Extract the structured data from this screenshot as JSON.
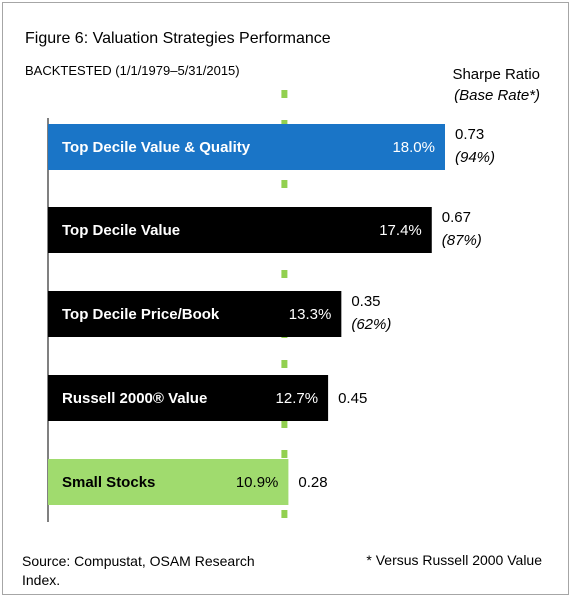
{
  "title": "Figure 6: Valuation Strategies Performance",
  "subtitle": "BACKTESTED (1/1/1979–5/31/2015)",
  "sharpe_header": "Sharpe Ratio",
  "base_rate_header": "(Base Rate*)",
  "footer_source": "Source: Compustat, OSAM Research Index.",
  "footer_note": "* Versus Russell 2000 Value",
  "colors": {
    "value_quality": "#1a75c7",
    "black": "#000000",
    "small_stocks": "#a0db6e",
    "reference_line": "#92d050"
  },
  "chart_data": {
    "type": "bar",
    "orientation": "horizontal",
    "title": "Figure 6: Valuation Strategies Performance",
    "subtitle": "BACKTESTED (1/1/1979–5/31/2015)",
    "categories": [
      "Top Decile Value & Quality",
      "Top Decile Value",
      "Top Decile Price/Book",
      "Russell 2000® Value",
      "Small Stocks"
    ],
    "values": [
      18.0,
      17.4,
      13.3,
      12.7,
      10.9
    ],
    "value_labels": [
      "18.0%",
      "17.4%",
      "13.3%",
      "12.7%",
      "10.9%"
    ],
    "sharpe_ratio": [
      "0.73",
      "0.67",
      "0.35",
      "0.45",
      "0.28"
    ],
    "base_rate": [
      "(94%)",
      "(87%)",
      "(62%)",
      "",
      ""
    ],
    "bar_colors": [
      "#1a75c7",
      "#000000",
      "#000000",
      "#000000",
      "#a0db6e"
    ],
    "reference_line": 10.9,
    "grid": false,
    "legend": "none"
  }
}
